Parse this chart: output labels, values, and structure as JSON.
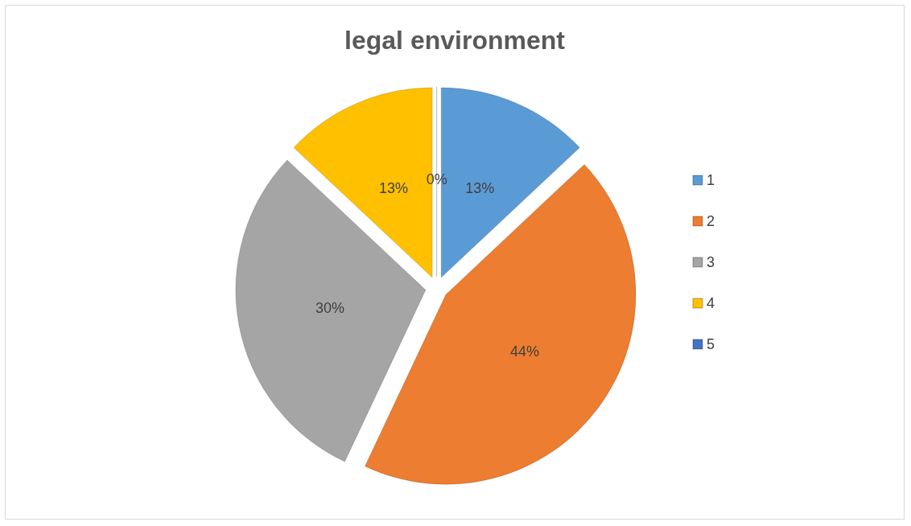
{
  "chart_data": {
    "type": "pie",
    "title": "legal environment",
    "categories": [
      "1",
      "2",
      "3",
      "4",
      "5"
    ],
    "values": [
      13,
      44,
      30,
      13,
      0
    ],
    "value_labels": [
      "13%",
      "44%",
      "30%",
      "13%",
      "0%"
    ],
    "colors": [
      "#5b9bd5",
      "#ed7d31",
      "#a5a5a5",
      "#ffc000",
      "#4472c4"
    ],
    "legend": "right"
  }
}
